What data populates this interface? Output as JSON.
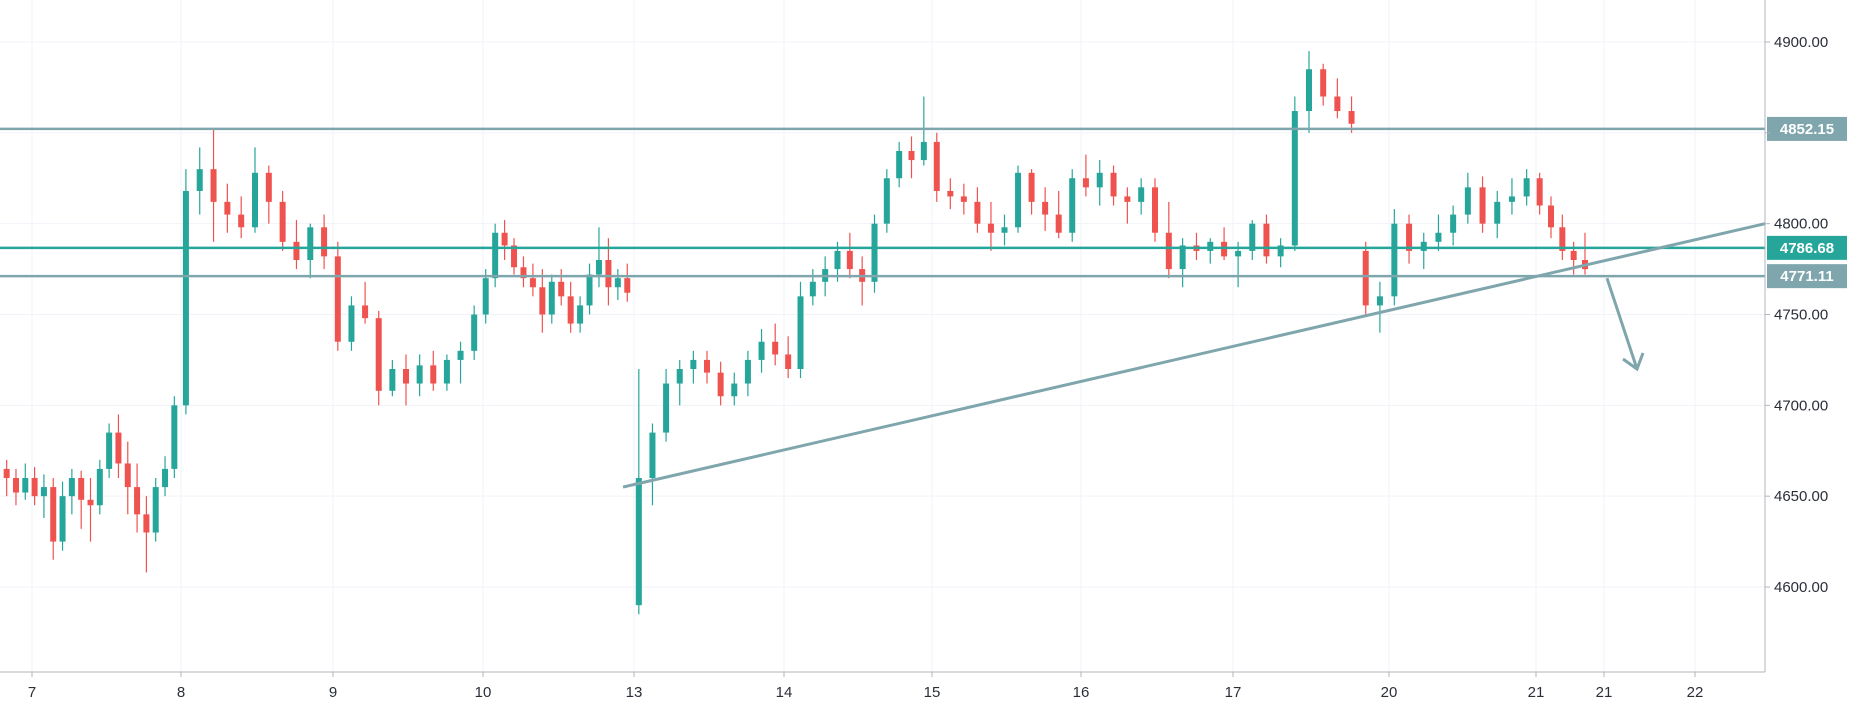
{
  "chart_data": {
    "type": "candlestick",
    "y_axis": {
      "range": [
        4565,
        4915
      ],
      "ticks": [
        4600,
        4650,
        4700,
        4750,
        4800,
        4850,
        4900
      ],
      "tick_labels": [
        "4600.00",
        "4650.00",
        "4700.00",
        "4750.00",
        "4800.00",
        "",
        "4900.00"
      ]
    },
    "x_axis": {
      "ticks": [
        "7",
        "8",
        "9",
        "10",
        "13",
        "14",
        "15",
        "16",
        "17",
        "20",
        "21",
        "21",
        "22"
      ]
    },
    "horizontal_levels": [
      {
        "value": 4852.15,
        "label": "4852.15",
        "color": "#7fa6ad"
      },
      {
        "value": 4786.68,
        "label": "4786.68",
        "color": "#26a69a"
      },
      {
        "value": 4771.11,
        "label": "4771.11",
        "color": "#7fa6ad"
      }
    ],
    "trendline": {
      "from": {
        "x": "13",
        "y": 4655
      },
      "to": {
        "x": "22+",
        "y": 4800
      },
      "color": "#7fa6ad"
    },
    "projection_arrow": {
      "direction": "down",
      "from_y": 4770,
      "to_y": 4720,
      "color": "#7fa6ad"
    },
    "candle_colors": {
      "up": "#26a69a",
      "down": "#ef5350"
    },
    "candles": [
      [
        4665,
        4670,
        4650,
        4660
      ],
      [
        4660,
        4665,
        4645,
        4652
      ],
      [
        4652,
        4668,
        4648,
        4660
      ],
      [
        4660,
        4666,
        4645,
        4650
      ],
      [
        4650,
        4662,
        4638,
        4655
      ],
      [
        4655,
        4660,
        4615,
        4625
      ],
      [
        4625,
        4658,
        4620,
        4650
      ],
      [
        4650,
        4665,
        4640,
        4660
      ],
      [
        4660,
        4664,
        4632,
        4648
      ],
      [
        4648,
        4660,
        4625,
        4645
      ],
      [
        4645,
        4670,
        4640,
        4665
      ],
      [
        4665,
        4690,
        4660,
        4685
      ],
      [
        4685,
        4695,
        4660,
        4668
      ],
      [
        4668,
        4680,
        4640,
        4655
      ],
      [
        4655,
        4668,
        4630,
        4640
      ],
      [
        4640,
        4650,
        4608,
        4630
      ],
      [
        4630,
        4660,
        4625,
        4655
      ],
      [
        4655,
        4672,
        4650,
        4665
      ],
      [
        4665,
        4705,
        4660,
        4700
      ],
      [
        4700,
        4830,
        4695,
        4818
      ],
      [
        4818,
        4842,
        4805,
        4830
      ],
      [
        4830,
        4852,
        4790,
        4812
      ],
      [
        4812,
        4822,
        4795,
        4805
      ],
      [
        4805,
        4815,
        4792,
        4798
      ],
      [
        4798,
        4842,
        4795,
        4828
      ],
      [
        4828,
        4832,
        4800,
        4812
      ],
      [
        4812,
        4818,
        4785,
        4790
      ],
      [
        4790,
        4802,
        4775,
        4780
      ],
      [
        4780,
        4800,
        4770,
        4798
      ],
      [
        4798,
        4805,
        4775,
        4782
      ],
      [
        4782,
        4790,
        4730,
        4735
      ],
      [
        4735,
        4760,
        4730,
        4755
      ],
      [
        4755,
        4768,
        4745,
        4748
      ],
      [
        4748,
        4752,
        4700,
        4708
      ],
      [
        4708,
        4725,
        4705,
        4720
      ],
      [
        4720,
        4728,
        4700,
        4712
      ],
      [
        4712,
        4728,
        4705,
        4722
      ],
      [
        4722,
        4730,
        4708,
        4712
      ],
      [
        4712,
        4728,
        4708,
        4725
      ],
      [
        4725,
        4735,
        4712,
        4730
      ],
      [
        4730,
        4755,
        4725,
        4750
      ],
      [
        4750,
        4775,
        4745,
        4770
      ],
      [
        4770,
        4800,
        4765,
        4795
      ],
      [
        4795,
        4802,
        4780,
        4788
      ],
      [
        4788,
        4792,
        4772,
        4776
      ],
      [
        4776,
        4782,
        4765,
        4770
      ],
      [
        4770,
        4778,
        4760,
        4765
      ],
      [
        4765,
        4775,
        4740,
        4750
      ],
      [
        4750,
        4772,
        4745,
        4768
      ],
      [
        4768,
        4775,
        4755,
        4760
      ],
      [
        4760,
        4768,
        4740,
        4745
      ],
      [
        4745,
        4760,
        4740,
        4755
      ],
      [
        4755,
        4778,
        4750,
        4772
      ],
      [
        4772,
        4798,
        4765,
        4780
      ],
      [
        4780,
        4792,
        4755,
        4765
      ],
      [
        4765,
        4775,
        4758,
        4770
      ],
      [
        4770,
        4778,
        4757,
        4762
      ],
      [
        4590,
        4720,
        4585,
        4660
      ],
      [
        4660,
        4690,
        4645,
        4685
      ],
      [
        4685,
        4720,
        4680,
        4712
      ],
      [
        4712,
        4725,
        4700,
        4720
      ],
      [
        4720,
        4730,
        4712,
        4725
      ],
      [
        4725,
        4730,
        4712,
        4718
      ],
      [
        4718,
        4724,
        4700,
        4705
      ],
      [
        4705,
        4718,
        4700,
        4712
      ],
      [
        4712,
        4730,
        4705,
        4725
      ],
      [
        4725,
        4742,
        4718,
        4735
      ],
      [
        4735,
        4745,
        4722,
        4728
      ],
      [
        4728,
        4738,
        4715,
        4720
      ],
      [
        4720,
        4768,
        4715,
        4760
      ],
      [
        4760,
        4775,
        4755,
        4768
      ],
      [
        4768,
        4782,
        4760,
        4775
      ],
      [
        4775,
        4790,
        4768,
        4785
      ],
      [
        4785,
        4795,
        4770,
        4775
      ],
      [
        4775,
        4782,
        4755,
        4768
      ],
      [
        4768,
        4805,
        4762,
        4800
      ],
      [
        4800,
        4830,
        4795,
        4825
      ],
      [
        4825,
        4845,
        4820,
        4840
      ],
      [
        4840,
        4848,
        4825,
        4835
      ],
      [
        4835,
        4870,
        4832,
        4845
      ],
      [
        4845,
        4850,
        4812,
        4818
      ],
      [
        4818,
        4825,
        4808,
        4815
      ],
      [
        4815,
        4822,
        4805,
        4812
      ],
      [
        4812,
        4820,
        4795,
        4800
      ],
      [
        4800,
        4812,
        4785,
        4795
      ],
      [
        4795,
        4805,
        4788,
        4798
      ],
      [
        4798,
        4832,
        4795,
        4828
      ],
      [
        4828,
        4830,
        4805,
        4812
      ],
      [
        4812,
        4820,
        4796,
        4805
      ],
      [
        4805,
        4818,
        4792,
        4795
      ],
      [
        4795,
        4830,
        4790,
        4825
      ],
      [
        4825,
        4838,
        4815,
        4820
      ],
      [
        4820,
        4835,
        4810,
        4828
      ],
      [
        4828,
        4832,
        4810,
        4815
      ],
      [
        4815,
        4820,
        4800,
        4812
      ],
      [
        4812,
        4825,
        4805,
        4820
      ],
      [
        4820,
        4825,
        4790,
        4795
      ],
      [
        4795,
        4812,
        4770,
        4775
      ],
      [
        4775,
        4792,
        4765,
        4788
      ],
      [
        4788,
        4795,
        4780,
        4785
      ],
      [
        4785,
        4792,
        4778,
        4790
      ],
      [
        4790,
        4798,
        4780,
        4782
      ],
      [
        4782,
        4790,
        4765,
        4785
      ],
      [
        4785,
        4802,
        4780,
        4800
      ],
      [
        4800,
        4805,
        4778,
        4782
      ],
      [
        4782,
        4792,
        4776,
        4788
      ],
      [
        4788,
        4870,
        4785,
        4862
      ],
      [
        4862,
        4895,
        4850,
        4885
      ],
      [
        4885,
        4888,
        4865,
        4870
      ],
      [
        4870,
        4880,
        4858,
        4862
      ],
      [
        4862,
        4870,
        4850,
        4855
      ],
      [
        4785,
        4790,
        4750,
        4755
      ],
      [
        4755,
        4768,
        4740,
        4760
      ],
      [
        4760,
        4808,
        4755,
        4800
      ],
      [
        4800,
        4805,
        4778,
        4785
      ],
      [
        4785,
        4795,
        4775,
        4790
      ],
      [
        4790,
        4805,
        4785,
        4795
      ],
      [
        4795,
        4810,
        4788,
        4805
      ],
      [
        4805,
        4828,
        4800,
        4820
      ],
      [
        4820,
        4826,
        4795,
        4800
      ],
      [
        4800,
        4818,
        4792,
        4812
      ],
      [
        4812,
        4825,
        4805,
        4815
      ],
      [
        4815,
        4830,
        4810,
        4825
      ],
      [
        4825,
        4828,
        4805,
        4810
      ],
      [
        4810,
        4815,
        4792,
        4798
      ],
      [
        4798,
        4805,
        4780,
        4785
      ],
      [
        4785,
        4790,
        4772,
        4780
      ],
      [
        4780,
        4795,
        4772,
        4775
      ]
    ]
  },
  "axis_labels": {
    "x": [
      "7",
      "8",
      "9",
      "10",
      "13",
      "14",
      "15",
      "16",
      "17",
      "20",
      "21",
      "21",
      "22"
    ],
    "y": [
      "4600.00",
      "4650.00",
      "4700.00",
      "4750.00",
      "4800.00",
      "",
      "4900.00"
    ]
  }
}
